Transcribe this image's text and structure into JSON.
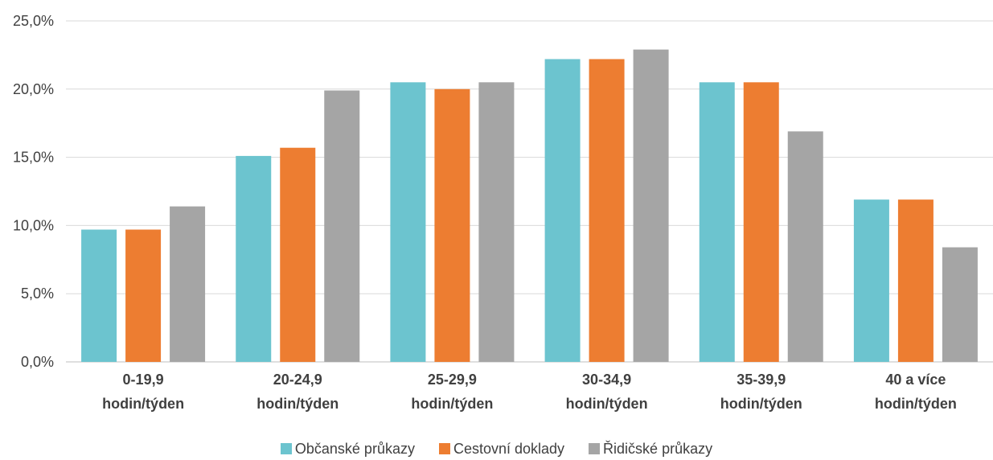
{
  "chart_data": {
    "type": "bar",
    "categories": [
      [
        "0-19,9",
        "hodin/týden"
      ],
      [
        "20-24,9",
        "hodin/týden"
      ],
      [
        "25-29,9",
        "hodin/týden"
      ],
      [
        "30-34,9",
        "hodin/týden"
      ],
      [
        "35-39,9",
        "hodin/týden"
      ],
      [
        "40 a více",
        "hodin/týden"
      ]
    ],
    "series": [
      {
        "name": "Občanské průkazy",
        "color": "#6cc4cf",
        "values": [
          9.7,
          15.1,
          20.5,
          22.2,
          20.5,
          11.9
        ]
      },
      {
        "name": "Cestovní doklady",
        "color": "#ed7d31",
        "values": [
          9.7,
          15.7,
          20.0,
          22.2,
          20.5,
          11.9
        ]
      },
      {
        "name": "Řidičské průkazy",
        "color": "#a5a5a5",
        "values": [
          11.4,
          19.9,
          20.5,
          22.9,
          16.9,
          8.4
        ]
      }
    ],
    "yticks": [
      "0,0%",
      "5,0%",
      "10,0%",
      "15,0%",
      "20,0%",
      "25,0%"
    ],
    "ylim": [
      0,
      25
    ],
    "grid": true,
    "legend_position": "bottom"
  }
}
